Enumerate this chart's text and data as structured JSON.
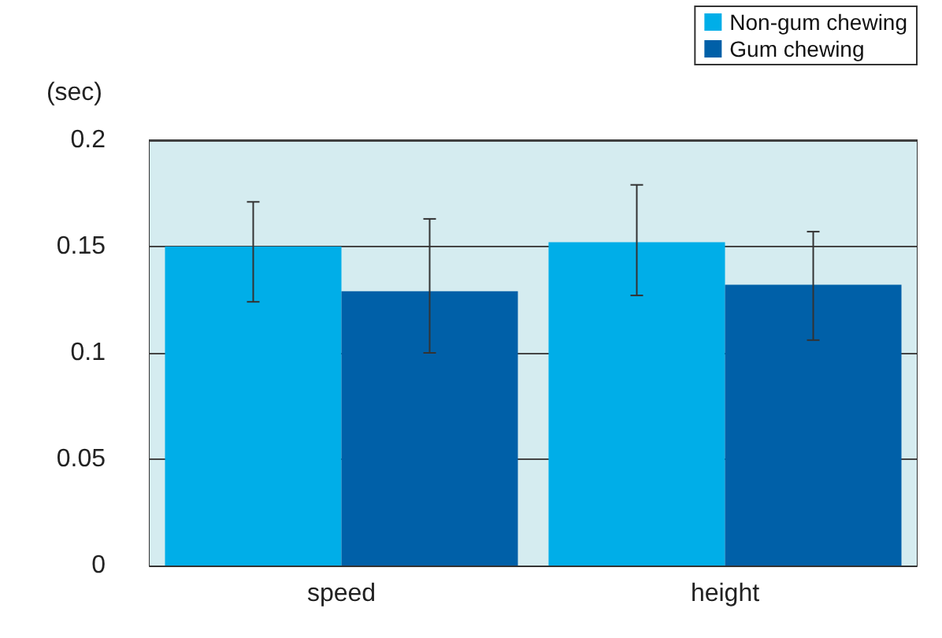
{
  "chart_data": {
    "type": "bar",
    "ylabel": "(sec)",
    "categories": [
      "speed",
      "height"
    ],
    "ylim": [
      0,
      0.2
    ],
    "yticks": [
      0,
      0.05,
      0.1,
      0.15,
      0.2
    ],
    "grid": "y",
    "legend": "top right",
    "series": [
      {
        "name": "Non-gum chewing",
        "color": "#00aee8",
        "values": [
          0.15,
          0.152
        ],
        "errors": [
          [
            0.124,
            0.171
          ],
          [
            0.127,
            0.179
          ]
        ]
      },
      {
        "name": "Gum chewing",
        "color": "#0060a8",
        "values": [
          0.129,
          0.132
        ],
        "errors": [
          [
            0.1,
            0.163
          ],
          [
            0.106,
            0.157
          ]
        ]
      }
    ]
  }
}
